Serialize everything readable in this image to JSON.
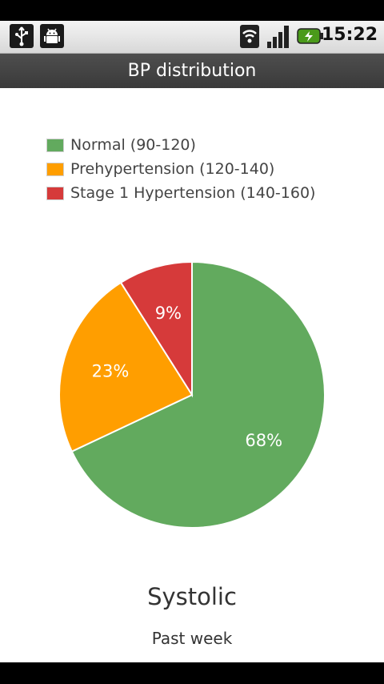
{
  "status_bar": {
    "time": "15:22",
    "icons": [
      "usb-icon",
      "android-debug-icon",
      "wifi-icon",
      "signal-icon",
      "battery-charging-icon"
    ]
  },
  "app": {
    "title": "BP distribution"
  },
  "chart_data": {
    "type": "pie",
    "slices": [
      {
        "name": "Normal (90-120)",
        "value": 68,
        "label": "68%",
        "color": "#62aa5e"
      },
      {
        "name": "Prehypertension (120-140)",
        "value": 23,
        "label": "23%",
        "color": "#ff9e00"
      },
      {
        "name": "Stage 1 Hypertension (140-160)",
        "value": 9,
        "label": "9%",
        "color": "#d63a3a"
      }
    ],
    "legend_position": "top-left",
    "title": "Systolic",
    "subtitle": "Past week"
  }
}
